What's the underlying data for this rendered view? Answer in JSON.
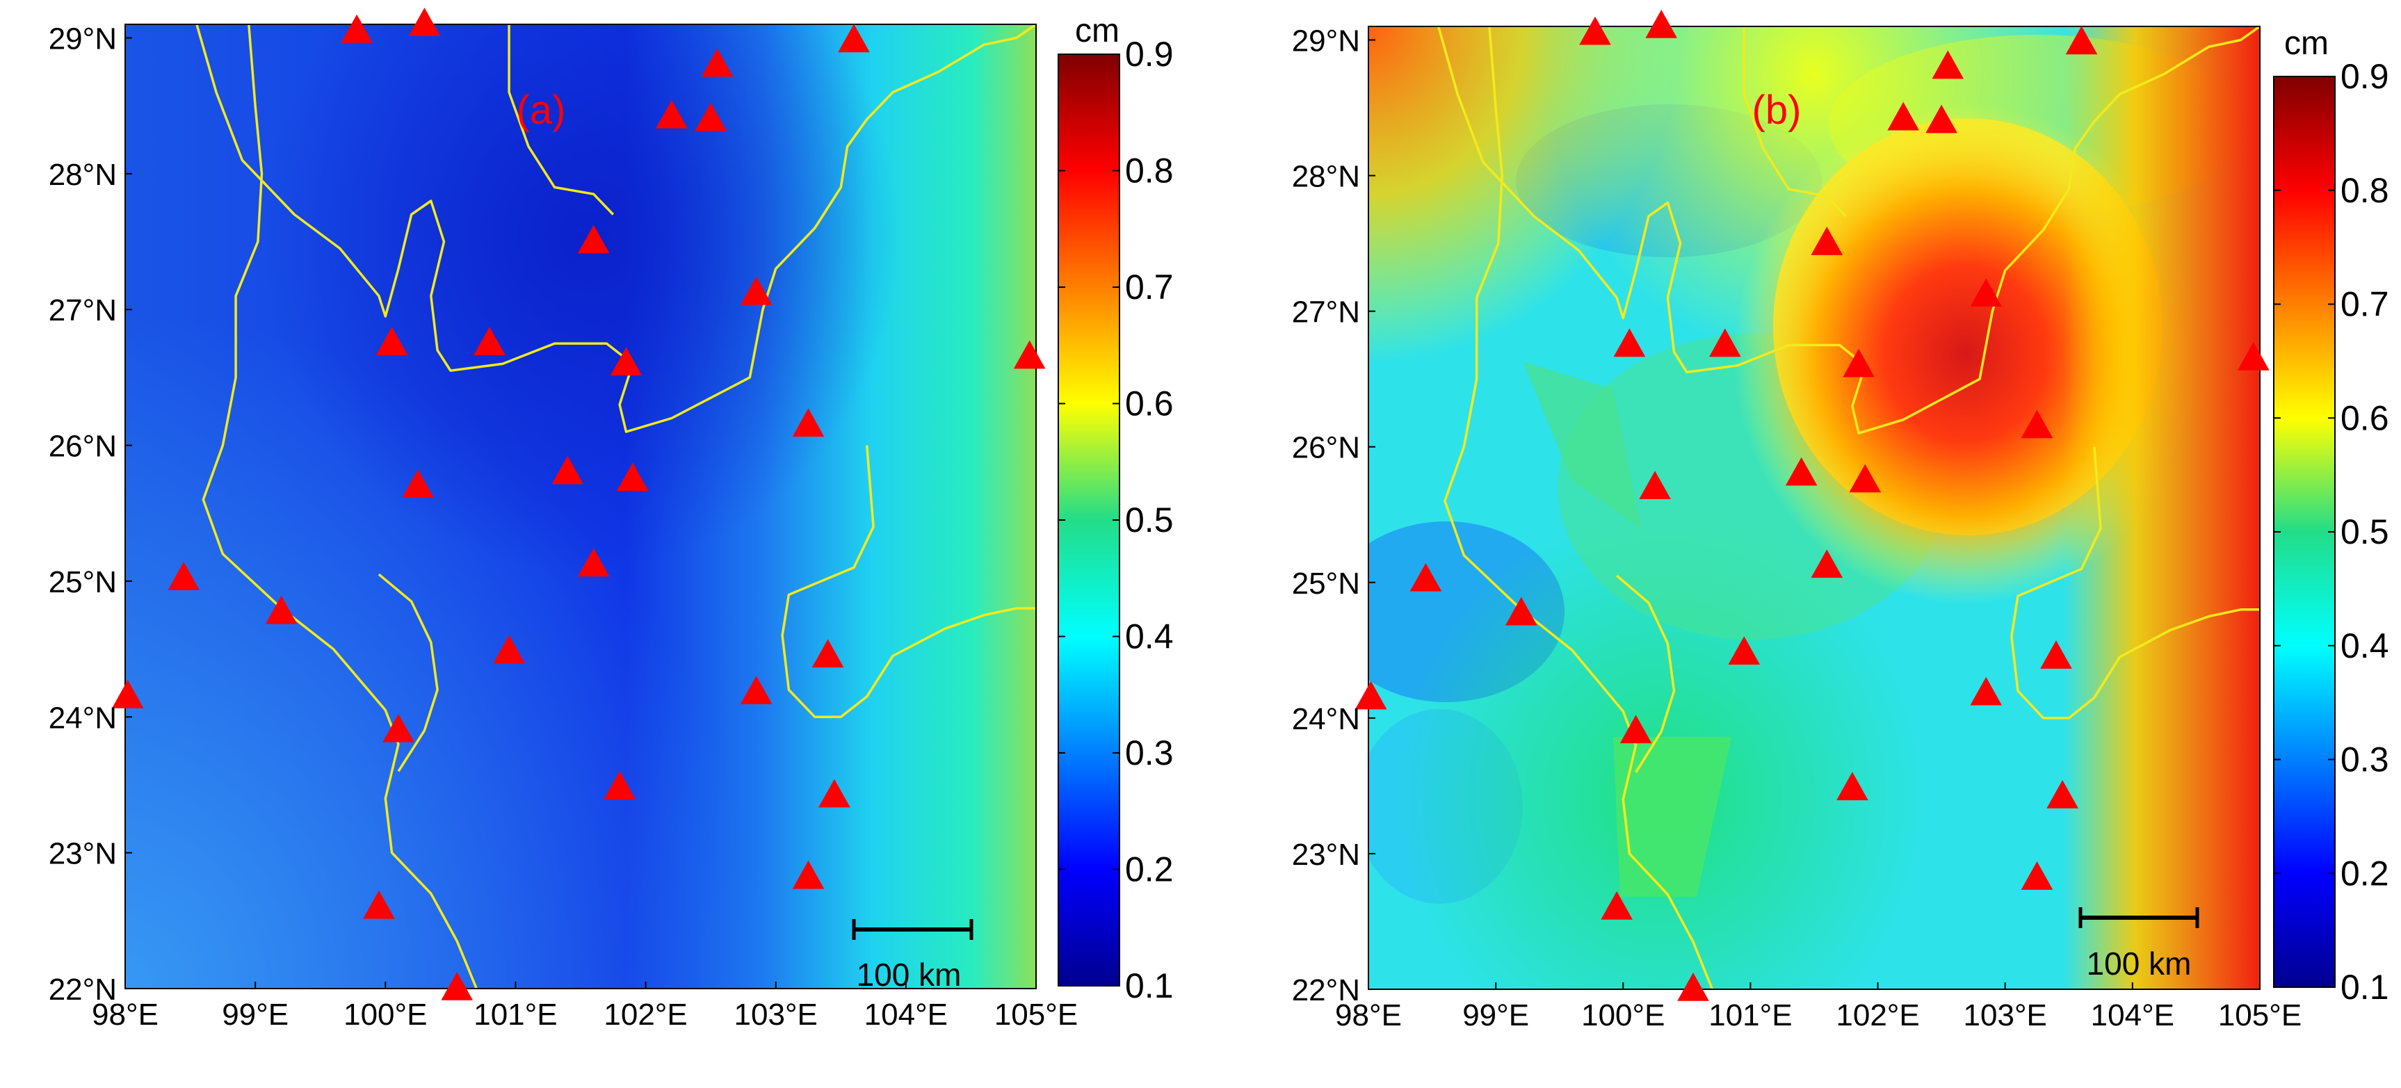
{
  "panels": [
    {
      "id": "a",
      "label": "(a)",
      "unit": "cm",
      "colorbar": {
        "min": 0.1,
        "max": 0.9,
        "ticks": [
          "0.1",
          "0.2",
          "0.3",
          "0.4",
          "0.5",
          "0.6",
          "0.7",
          "0.8",
          "0.9"
        ]
      },
      "lon_ticks": [
        "98°E",
        "99°E",
        "100°E",
        "101°E",
        "102°E",
        "103°E",
        "104°E",
        "105°E"
      ],
      "lat_ticks": [
        "22°N",
        "23°N",
        "24°N",
        "25°N",
        "26°N",
        "27°N",
        "28°N",
        "29°N"
      ],
      "scale_bar": "100 km",
      "field_note_values": {
        "background": 0.2,
        "east_high": 0.55
      }
    },
    {
      "id": "b",
      "label": "(b)",
      "unit": "cm",
      "colorbar": {
        "min": 0.1,
        "max": 0.9,
        "ticks": [
          "0.1",
          "0.2",
          "0.3",
          "0.4",
          "0.5",
          "0.6",
          "0.7",
          "0.8",
          "0.9"
        ]
      },
      "lon_ticks": [
        "98°E",
        "99°E",
        "100°E",
        "101°E",
        "102°E",
        "103°E",
        "104°E",
        "105°E"
      ],
      "lat_ticks": [
        "22°N",
        "23°N",
        "24°N",
        "25°N",
        "26°N",
        "27°N",
        "28°N",
        "29°N"
      ],
      "scale_bar": "100 km",
      "field_note_values": {
        "background": 0.45,
        "hotspot_peak": 0.82
      }
    }
  ],
  "map_domain": {
    "lon": [
      98,
      105
    ],
    "lat": [
      22,
      29.1
    ]
  },
  "stations": [
    {
      "lon": 99.78,
      "lat": 29.05
    },
    {
      "lon": 100.3,
      "lat": 29.1
    },
    {
      "lon": 102.55,
      "lat": 28.8
    },
    {
      "lon": 103.6,
      "lat": 28.98
    },
    {
      "lon": 102.2,
      "lat": 28.42
    },
    {
      "lon": 102.5,
      "lat": 28.4
    },
    {
      "lon": 101.6,
      "lat": 27.5
    },
    {
      "lon": 102.85,
      "lat": 27.12
    },
    {
      "lon": 100.05,
      "lat": 26.75
    },
    {
      "lon": 100.8,
      "lat": 26.75
    },
    {
      "lon": 101.85,
      "lat": 26.6
    },
    {
      "lon": 104.95,
      "lat": 26.65
    },
    {
      "lon": 103.25,
      "lat": 26.15
    },
    {
      "lon": 101.4,
      "lat": 25.8
    },
    {
      "lon": 101.9,
      "lat": 25.75
    },
    {
      "lon": 100.25,
      "lat": 25.7
    },
    {
      "lon": 98.45,
      "lat": 25.02
    },
    {
      "lon": 99.2,
      "lat": 24.77
    },
    {
      "lon": 101.6,
      "lat": 25.12
    },
    {
      "lon": 100.95,
      "lat": 24.48
    },
    {
      "lon": 103.4,
      "lat": 24.45
    },
    {
      "lon": 98.02,
      "lat": 24.15
    },
    {
      "lon": 102.85,
      "lat": 24.18
    },
    {
      "lon": 100.1,
      "lat": 23.9
    },
    {
      "lon": 101.8,
      "lat": 23.48
    },
    {
      "lon": 103.45,
      "lat": 23.42
    },
    {
      "lon": 103.25,
      "lat": 22.82
    },
    {
      "lon": 99.95,
      "lat": 22.6
    },
    {
      "lon": 100.55,
      "lat": 22.0
    }
  ],
  "colors": {
    "boundary": "#f2ea1e",
    "station": "#ff0000",
    "label": "#ff0000"
  }
}
